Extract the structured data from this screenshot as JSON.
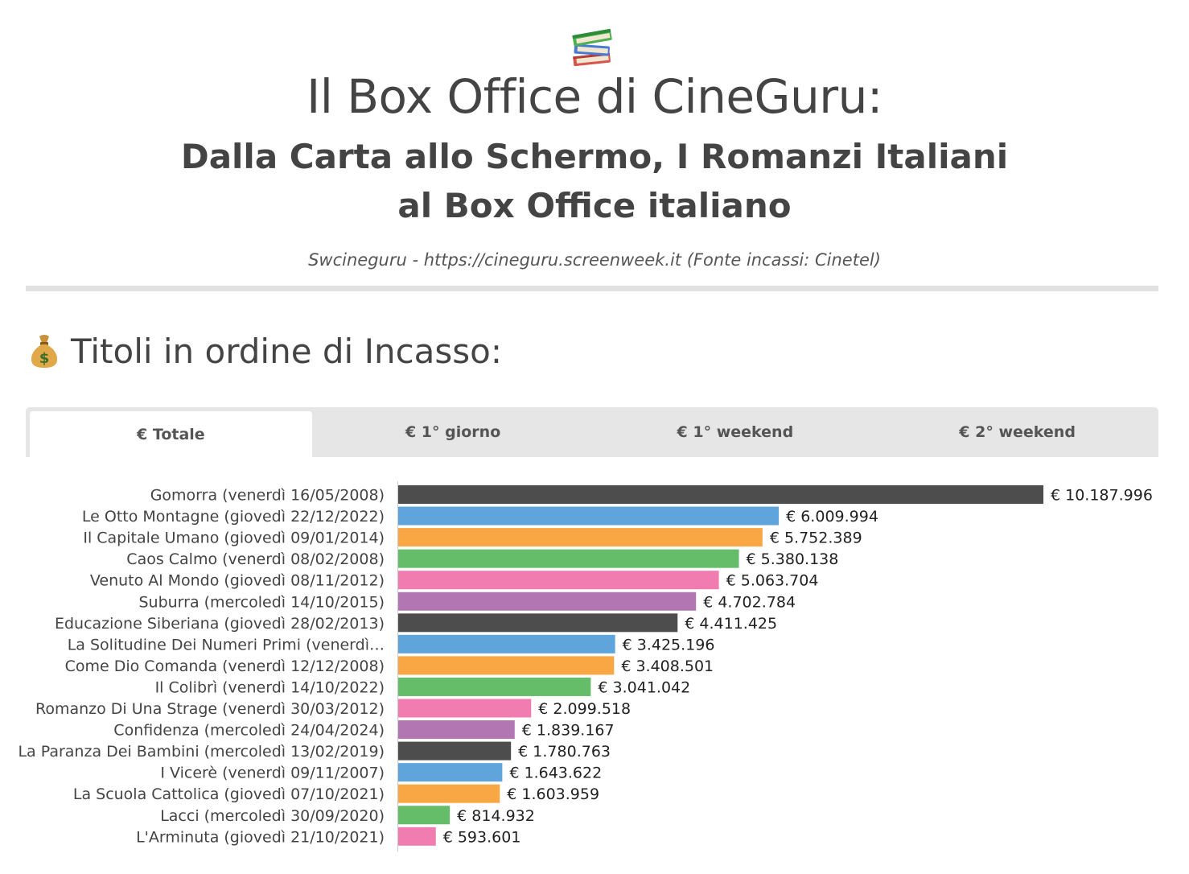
{
  "header": {
    "icon": "books-icon",
    "title": "Il Box Office di CineGuru:",
    "subtitle_line1": "Dalla Carta allo Schermo, I Romanzi Italiani",
    "subtitle_line2": "al Box Office italiano",
    "source": "Swcineguru - https://cineguru.screenweek.it (Fonte incassi: Cinetel)"
  },
  "section": {
    "icon": "money-bag-icon",
    "title": "Titoli in ordine di Incasso:"
  },
  "tabs": [
    {
      "label": "€ Totale",
      "active": true
    },
    {
      "label": "€ 1° giorno",
      "active": false
    },
    {
      "label": "€ 1° weekend",
      "active": false
    },
    {
      "label": "€ 2° weekend",
      "active": false
    }
  ],
  "colors": {
    "palette": [
      "#4d4d4d",
      "#5fa4da",
      "#f9a644",
      "#65bd6a",
      "#f07cb0",
      "#b277b2"
    ],
    "divider": "#e1e1e1",
    "tabbar": "#e6e6e6"
  },
  "chart_data": {
    "type": "bar",
    "orientation": "horizontal",
    "categories": [
      "Gomorra (venerdì 16/05/2008)",
      "Le Otto Montagne (giovedì 22/12/2022)",
      "Il Capitale Umano (giovedì 09/01/2014)",
      "Caos Calmo (venerdì 08/02/2008)",
      "Venuto Al Mondo (giovedì 08/11/2012)",
      "Suburra (mercoledì 14/10/2015)",
      "Educazione Siberiana (giovedì 28/02/2013)",
      "La Solitudine Dei Numeri Primi (venerdì…",
      "Come Dio Comanda (venerdì 12/12/2008)",
      "Il Colibrì (venerdì 14/10/2022)",
      "Romanzo Di Una Strage (venerdì 30/03/2012)",
      "Confidenza (mercoledì 24/04/2024)",
      "La Paranza Dei Bambini (mercoledì 13/02/2019)",
      "I Vicerè (venerdì 09/11/2007)",
      "La Scuola Cattolica (giovedì 07/10/2021)",
      "Lacci (mercoledì 30/09/2020)",
      "L'Arminuta (giovedì 21/10/2021)"
    ],
    "values": [
      10187996,
      6009994,
      5752389,
      5380138,
      5063704,
      4702784,
      4411425,
      3425196,
      3408501,
      3041042,
      2099518,
      1839167,
      1780763,
      1643622,
      1603959,
      814932,
      593601
    ],
    "value_labels": [
      "€ 10.187.996",
      "€ 6.009.994",
      "€ 5.752.389",
      "€ 5.380.138",
      "€ 5.063.704",
      "€ 4.702.784",
      "€ 4.411.425",
      "€ 3.425.196",
      "€ 3.408.501",
      "€ 3.041.042",
      "€ 2.099.518",
      "€ 1.839.167",
      "€ 1.780.763",
      "€ 1.643.622",
      "€ 1.603.959",
      "€ 814.932",
      "€ 593.601"
    ],
    "xlim": [
      0,
      10187996
    ],
    "grid": false,
    "legend": "none"
  }
}
